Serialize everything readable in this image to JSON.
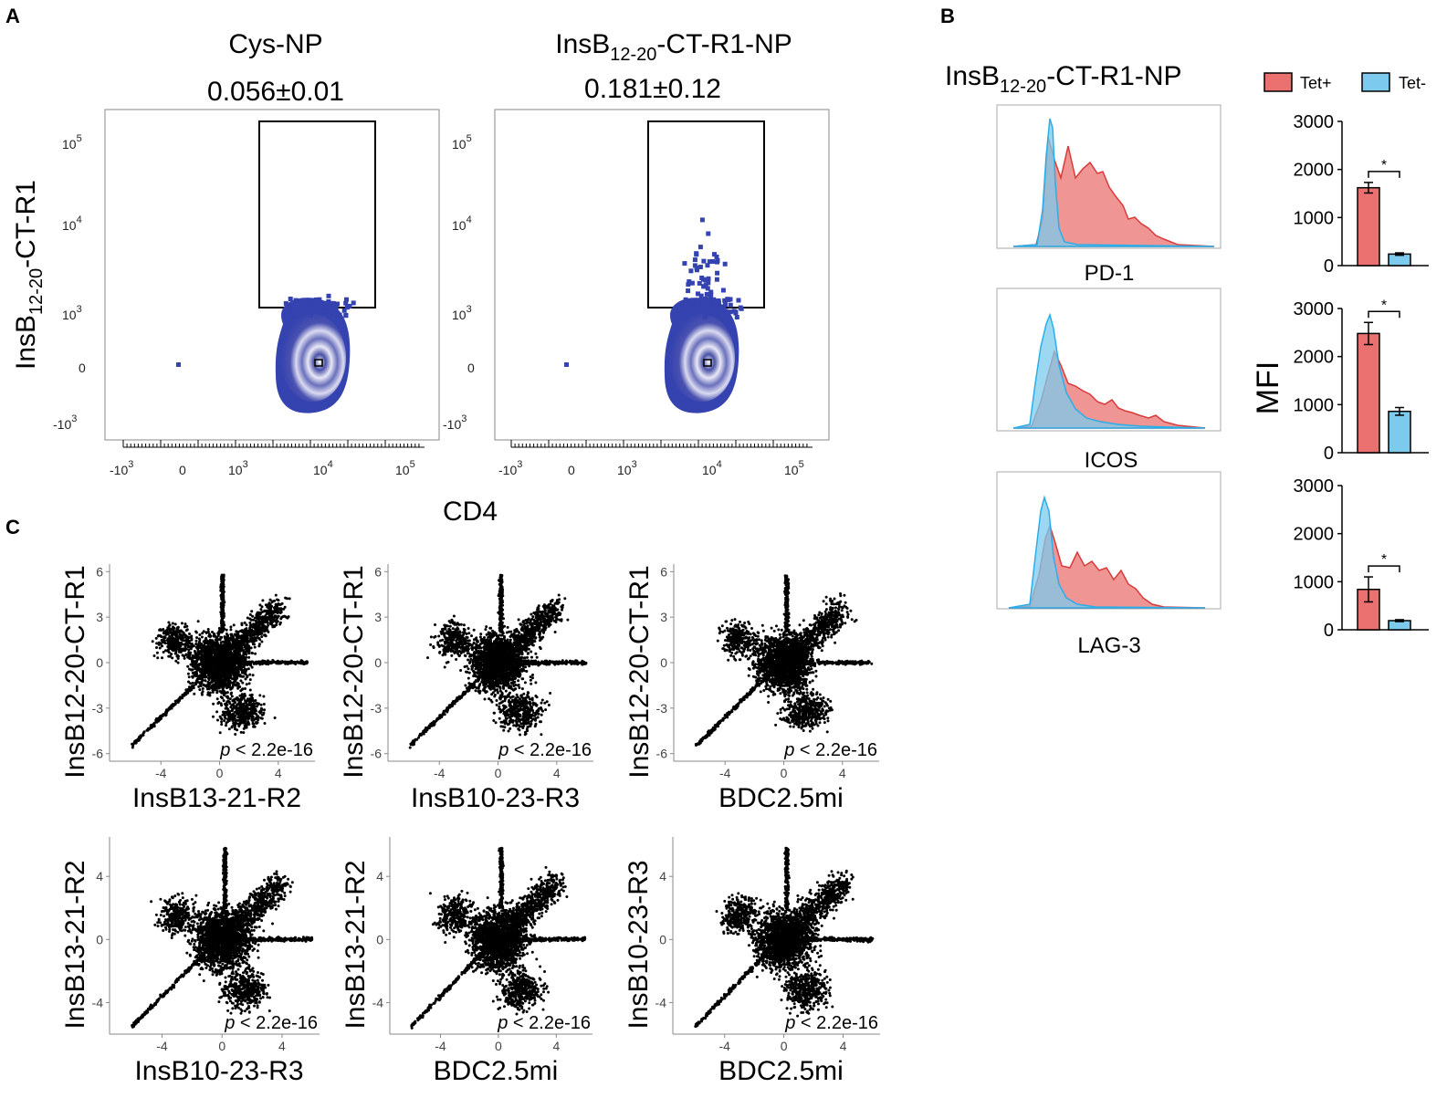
{
  "panels": {
    "a": "A",
    "b": "B",
    "c": "C"
  },
  "panel_a": {
    "ylabel_main": "InsB",
    "ylabel_sub": "12-20",
    "ylabel_suffix": "-CT-R1",
    "xlabel": "CD4",
    "plots": [
      {
        "title": "Cys-NP",
        "value": "0.056±0.01"
      },
      {
        "title_main": "InsB",
        "title_sub": "12-20",
        "title_suffix": "-CT-R1-NP",
        "value": "0.181±0.12"
      }
    ],
    "y_ticks": [
      "10",
      "10",
      "10",
      "0",
      "-10"
    ],
    "y_tick_exps": [
      "5",
      "4",
      "3",
      "",
      "3"
    ],
    "x_ticks": [
      "-10",
      "0",
      "10",
      "10",
      "10"
    ],
    "x_tick_exps": [
      "3",
      "",
      "3",
      "4",
      "5"
    ]
  },
  "panel_b": {
    "title_main": "InsB",
    "title_sub": "12-20",
    "title_suffix": "-CT-R1-NP",
    "legend": [
      {
        "label": "Tet+",
        "color": "#ea7170"
      },
      {
        "label": "Tet-",
        "color": "#7ccbee"
      }
    ],
    "histograms": [
      "PD-1",
      "ICOS",
      "LAG-3"
    ],
    "ylabel": "MFI",
    "bar_ticks": [
      "3000",
      "2000",
      "1000",
      "0"
    ],
    "significance": "*"
  },
  "chart_data": [
    {
      "type": "bar",
      "title": "PD-1",
      "categories": [
        "Tet+",
        "Tet-"
      ],
      "values": [
        1620,
        240
      ],
      "errors": [
        110,
        25
      ],
      "ylabel": "MFI",
      "ylim": [
        0,
        3000
      ]
    },
    {
      "type": "bar",
      "title": "ICOS",
      "categories": [
        "Tet+",
        "Tet-"
      ],
      "values": [
        2480,
        860
      ],
      "errors": [
        230,
        80
      ],
      "ylabel": "MFI",
      "ylim": [
        0,
        3000
      ]
    },
    {
      "type": "bar",
      "title": "LAG-3",
      "categories": [
        "Tet+",
        "Tet-"
      ],
      "values": [
        840,
        190
      ],
      "errors": [
        260,
        20
      ],
      "ylabel": "MFI",
      "ylim": [
        0,
        3000
      ]
    }
  ],
  "panel_c": {
    "p_label": "p",
    "p_value": " < 2.2e-16",
    "scatters": [
      {
        "ylabel": "InsB12-20-CT-R1",
        "xlabel": "InsB13-21-R2",
        "yticks": [
          "6",
          "3",
          "0",
          "-3",
          "-6"
        ],
        "xticks": [
          "-4",
          "0",
          "4"
        ]
      },
      {
        "ylabel": "InsB12-20-CT-R1",
        "xlabel": "InsB10-23-R3",
        "yticks": [
          "6",
          "3",
          "0",
          "-3",
          "-6"
        ],
        "xticks": [
          "-4",
          "0",
          "4"
        ]
      },
      {
        "ylabel": "InsB12-20-CT-R1",
        "xlabel": "BDC2.5mi",
        "yticks": [
          "6",
          "3",
          "0",
          "-3",
          "-6"
        ],
        "xticks": [
          "-4",
          "0",
          "4"
        ]
      },
      {
        "ylabel": "InsB13-21-R2",
        "xlabel": "InsB10-23-R3",
        "yticks": [
          "4",
          "0",
          "-4"
        ],
        "xticks": [
          "-4",
          "0",
          "4"
        ]
      },
      {
        "ylabel": "InsB13-21-R2",
        "xlabel": "BDC2.5mi",
        "yticks": [
          "4",
          "0",
          "-4"
        ],
        "xticks": [
          "-4",
          "0",
          "4"
        ]
      },
      {
        "ylabel": "InsB10-23-R3",
        "xlabel": "BDC2.5mi",
        "yticks": [
          "4",
          "0",
          "-4"
        ],
        "xticks": [
          "-4",
          "0",
          "4"
        ]
      }
    ]
  }
}
